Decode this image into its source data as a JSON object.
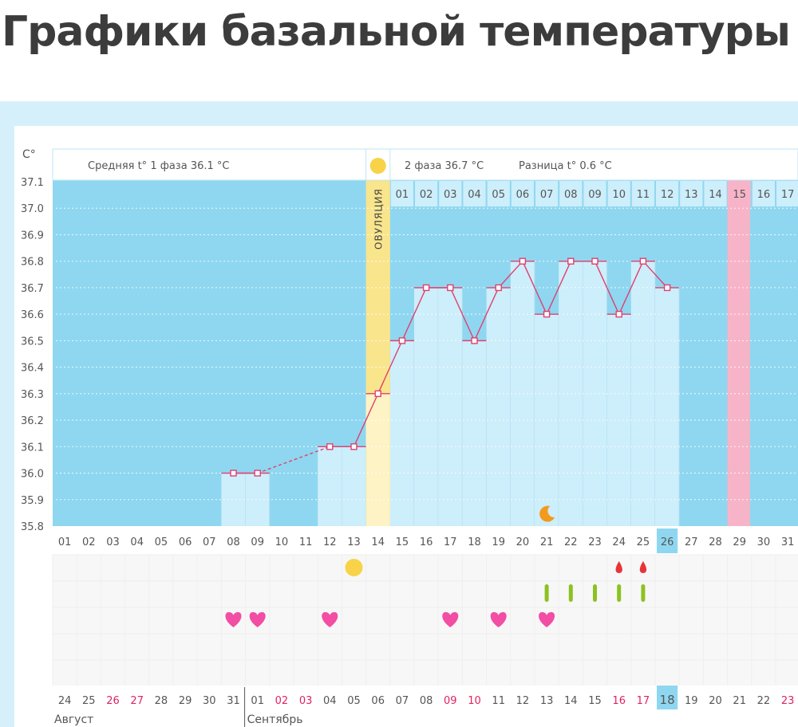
{
  "page_title": "Графики базальной температуры",
  "chart_data": {
    "type": "line",
    "y_unit_label": "C°",
    "ylim": [
      35.8,
      37.1
    ],
    "y_ticks": [
      "37.1",
      "37.0",
      "36.9",
      "36.8",
      "36.7",
      "36.6",
      "36.5",
      "36.4",
      "36.3",
      "36.2",
      "36.1",
      "36.0",
      "35.9",
      "35.8"
    ],
    "cycle_days": [
      "01",
      "02",
      "03",
      "04",
      "05",
      "06",
      "07",
      "08",
      "09",
      "10",
      "11",
      "12",
      "13",
      "14",
      "15",
      "16",
      "17",
      "18",
      "19",
      "20",
      "21",
      "22",
      "23",
      "24",
      "25",
      "26",
      "27",
      "28",
      "29",
      "30",
      "31"
    ],
    "points": [
      {
        "day": 8,
        "value": 36.0
      },
      {
        "day": 9,
        "value": 36.0
      },
      {
        "day": 12,
        "value": 36.1
      },
      {
        "day": 13,
        "value": 36.1
      },
      {
        "day": 14,
        "value": 36.3
      },
      {
        "day": 15,
        "value": 36.5
      },
      {
        "day": 16,
        "value": 36.7
      },
      {
        "day": 17,
        "value": 36.7
      },
      {
        "day": 18,
        "value": 36.5
      },
      {
        "day": 19,
        "value": 36.7
      },
      {
        "day": 20,
        "value": 36.8
      },
      {
        "day": 21,
        "value": 36.6
      },
      {
        "day": 22,
        "value": 36.8
      },
      {
        "day": 23,
        "value": 36.8
      },
      {
        "day": 24,
        "value": 36.6
      },
      {
        "day": 25,
        "value": 36.8
      },
      {
        "day": 26,
        "value": 36.7
      }
    ],
    "dashed_segments": [
      [
        9,
        12
      ]
    ],
    "ovulation_day": 14,
    "ovulation_label": "ОВУЛЯЦИЯ",
    "highlight_day": 26,
    "pink_day": 29,
    "phase1_text": "Средняя t° 1 фаза 36.1 °C",
    "phase2_text": "2 фаза 36.7 °C",
    "diff_text": "Разница t° 0.6 °C",
    "post_ovulation_days": [
      "01",
      "02",
      "03",
      "04",
      "05",
      "06",
      "07",
      "08",
      "09",
      "10",
      "11",
      "12",
      "13",
      "14",
      "15",
      "16",
      "17"
    ],
    "moon_day": 21,
    "symbol_rows": {
      "sun": [
        13
      ],
      "drop": [
        24,
        25
      ],
      "green_bar": [
        21,
        22,
        23,
        24,
        25
      ],
      "heart": [
        8,
        9,
        12,
        17,
        19,
        21
      ]
    },
    "calendar_dates": [
      "24",
      "25",
      "26",
      "27",
      "28",
      "29",
      "30",
      "31",
      "01",
      "02",
      "03",
      "04",
      "05",
      "06",
      "07",
      "08",
      "09",
      "10",
      "11",
      "12",
      "13",
      "14",
      "15",
      "16",
      "17",
      "18",
      "19",
      "20",
      "21",
      "22",
      "23"
    ],
    "weekend_dates_idx": [
      2,
      3,
      9,
      10,
      16,
      17,
      23,
      24,
      30
    ],
    "months": [
      {
        "label": "Август",
        "start_idx": 0
      },
      {
        "label": "Сентябрь",
        "start_idx": 8
      }
    ],
    "colors": {
      "background": "#8fd7f0",
      "bar": "#cdeefb",
      "line": "#e0406e",
      "ovulation": "#f9e58c",
      "ovulation_pale": "#fdf3c4",
      "pink_day": "#f7b4c8",
      "highlight": "#8fd7f0",
      "heart": "#f24ea3",
      "drop": "#e8333a",
      "green": "#8cc220",
      "sun": "#f8d34a",
      "moon": "#f39a1e",
      "weekend": "#e0245e"
    }
  }
}
